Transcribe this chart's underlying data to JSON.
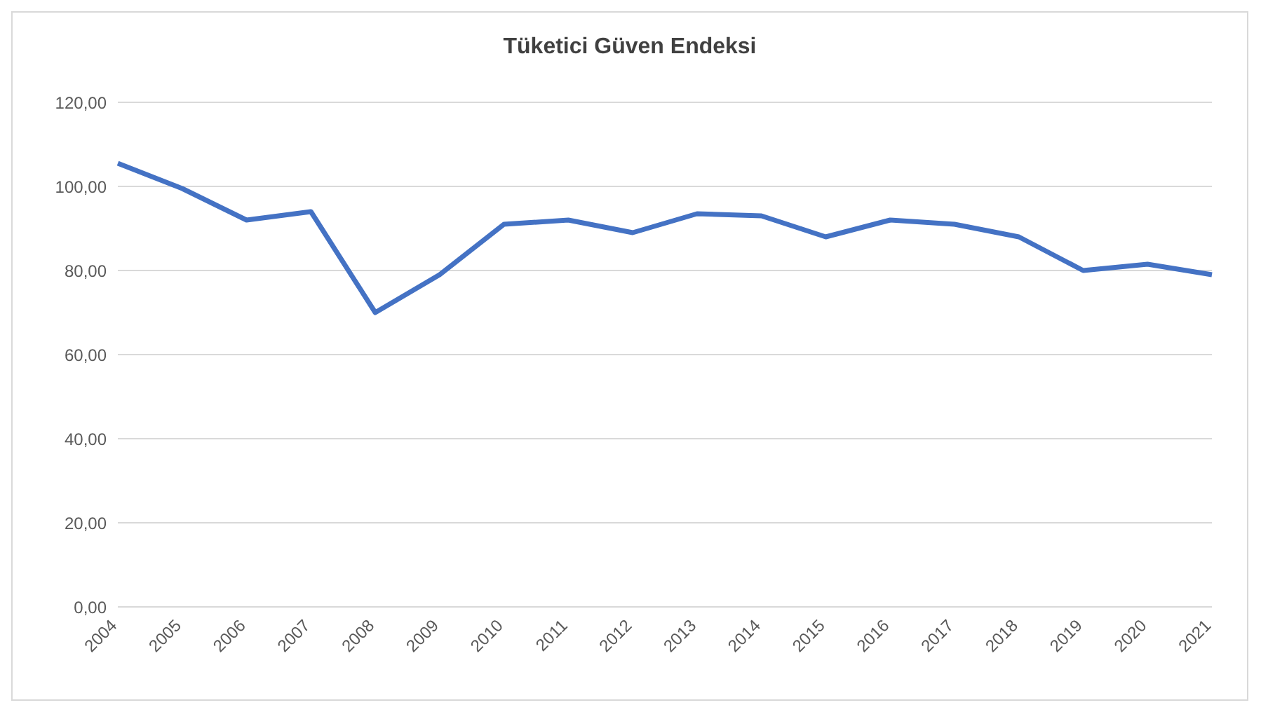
{
  "chart_data": {
    "type": "line",
    "title": "Tüketici Güven Endeksi",
    "categories": [
      "2004",
      "2005",
      "2006",
      "2007",
      "2008",
      "2009",
      "2010",
      "2011",
      "2012",
      "2013",
      "2014",
      "2015",
      "2016",
      "2017",
      "2018",
      "2019",
      "2020",
      "2021"
    ],
    "series": [
      {
        "color": "#4472c4",
        "values": [
          105.5,
          99.5,
          92,
          94,
          70,
          79,
          91,
          92,
          89,
          93.5,
          93,
          88,
          92,
          91,
          88,
          80,
          81.5,
          79
        ]
      }
    ],
    "ylim": [
      0,
      120
    ],
    "yticks": [
      {
        "value": 0,
        "label": "0,00"
      },
      {
        "value": 20,
        "label": "20,00"
      },
      {
        "value": 40,
        "label": "40,00"
      },
      {
        "value": 60,
        "label": "60,00"
      },
      {
        "value": 80,
        "label": "80,00"
      },
      {
        "value": 100,
        "label": "100,00"
      },
      {
        "value": 120,
        "label": "120,00"
      }
    ],
    "grid": "y",
    "marker": "none",
    "line_style": "solid"
  }
}
